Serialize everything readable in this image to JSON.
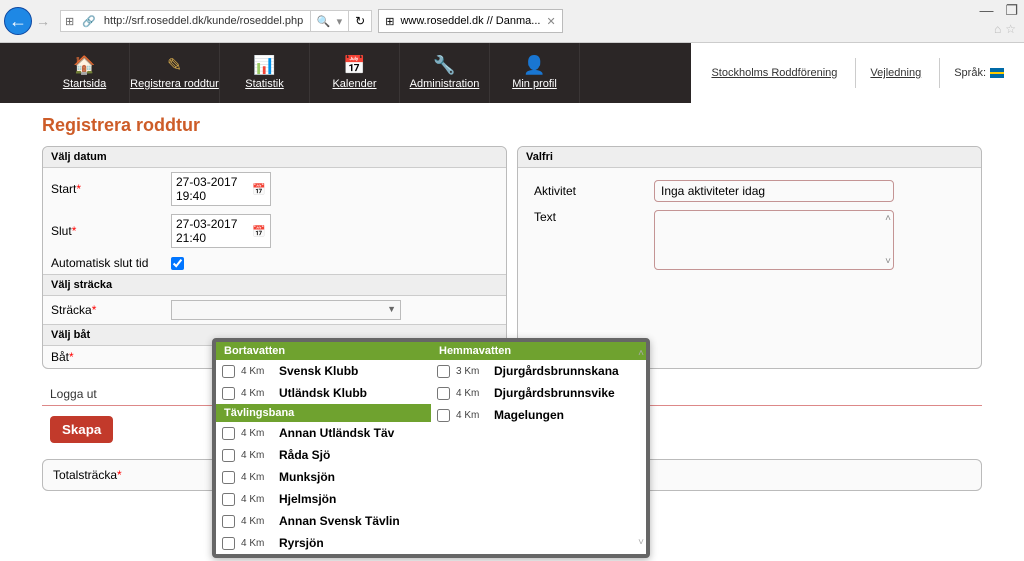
{
  "browser": {
    "url": "http://srf.roseddel.dk/kunde/roseddel.php",
    "tab_label": "www.roseddel.dk // Danma...",
    "search_symbol": "🔍"
  },
  "window": {
    "min": "—",
    "max": "❐",
    "home_icon": "⌂",
    "star_icon": "☆"
  },
  "nav": {
    "items": [
      {
        "label": "Startsida",
        "icon": "🏠",
        "cls": "icon-home"
      },
      {
        "label": "Registrera roddtur",
        "icon": "✎",
        "cls": "icon-pencil"
      },
      {
        "label": "Statistik",
        "icon": "📊",
        "cls": "icon-chart"
      },
      {
        "label": "Kalender",
        "icon": "📅",
        "cls": "icon-cal"
      },
      {
        "label": "Administration",
        "icon": "🔧",
        "cls": "icon-wrench"
      },
      {
        "label": "Min profil",
        "icon": "👤",
        "cls": "icon-user"
      }
    ],
    "right": {
      "club": "Stockholms Roddförening",
      "guide": "Vejledning",
      "lang_label": "Språk:"
    }
  },
  "page": {
    "title": "Registrera roddtur",
    "sections": {
      "date": "Välj datum",
      "stretch": "Välj sträcka",
      "boat": "Välj båt",
      "optional": "Valfri"
    },
    "labels": {
      "start": "Start",
      "slut": "Slut",
      "auto": "Automatisk slut tid",
      "stracka": "Sträcka",
      "bat": "Båt",
      "aktivitet": "Aktivitet",
      "text": "Text",
      "total": "Totalsträcka"
    },
    "values": {
      "start": "27-03-2017 19:40",
      "slut": "27-03-2017 21:40",
      "activity_placeholder": "Inga aktiviteter idag"
    },
    "logout": "Logga ut",
    "create": "Skapa"
  },
  "dropdown": {
    "headers": {
      "left1": "Bortavatten",
      "left2": "Tävlingsbana",
      "right1": "Hemmavatten"
    },
    "bortavatten": [
      {
        "km": "4 Km",
        "name": "Svensk Klubb"
      },
      {
        "km": "4 Km",
        "name": "Utländsk Klubb"
      }
    ],
    "tavling": [
      {
        "km": "4 Km",
        "name": "Annan Utländsk Täv"
      },
      {
        "km": "4 Km",
        "name": "Råda Sjö"
      },
      {
        "km": "4 Km",
        "name": "Munksjön"
      },
      {
        "km": "4 Km",
        "name": "Hjelmsjön"
      },
      {
        "km": "4 Km",
        "name": "Annan Svensk Tävlin"
      },
      {
        "km": "4 Km",
        "name": "Ryrsjön"
      }
    ],
    "hemma": [
      {
        "km": "3 Km",
        "name": "Djurgårdsbrunnskana"
      },
      {
        "km": "4 Km",
        "name": "Djurgårdsbrunnsvike"
      },
      {
        "km": "4 Km",
        "name": "Magelungen"
      }
    ]
  }
}
